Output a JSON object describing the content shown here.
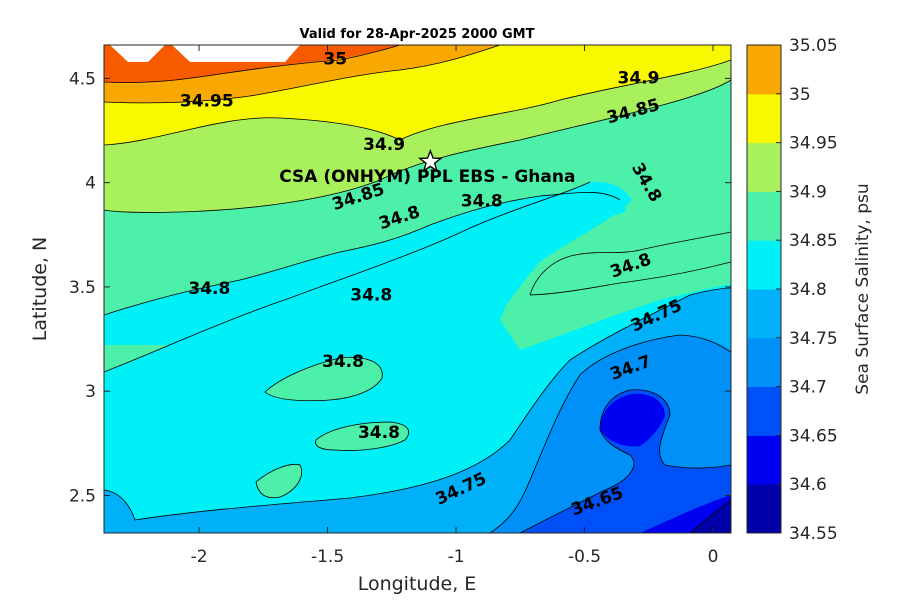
{
  "chart_data": {
    "type": "contour",
    "title": "Valid for 28-Apr-2025 2000 GMT",
    "xlabel": "Longitude, E",
    "ylabel": "Latitude, N",
    "xlim": [
      -2.37,
      0.07
    ],
    "ylim": [
      2.32,
      4.66
    ],
    "xticks": [
      -2,
      -1.5,
      -1,
      -0.5,
      0
    ],
    "xtick_labels": [
      "-2",
      "-1.5",
      "-1",
      "-0.5",
      "0"
    ],
    "yticks": [
      2.5,
      3,
      3.5,
      4,
      4.5
    ],
    "ytick_labels": [
      "2.5",
      "3",
      "3.5",
      "4",
      "4.5"
    ],
    "grid": false,
    "colorbar": {
      "label": "Sea Surface Salinity, psu",
      "levels": [
        34.55,
        34.6,
        34.65,
        34.7,
        34.75,
        34.8,
        34.85,
        34.9,
        34.95,
        35,
        35.05
      ],
      "tick_labels": [
        "34.55",
        "34.6",
        "34.65",
        "34.7",
        "34.75",
        "34.8",
        "34.85",
        "34.9",
        "34.95",
        "35",
        "35.05"
      ],
      "colors": [
        "#0000a8",
        "#0000f0",
        "#0050f8",
        "#0090f8",
        "#00b0f8",
        "#00f0f8",
        "#4cf0a8",
        "#a8f05c",
        "#f8f800",
        "#f8a800",
        "#f85a00"
      ]
    },
    "contour_labels": [
      {
        "text": "35",
        "x": -1.47,
        "y": 4.59,
        "angle": 0
      },
      {
        "text": "34.95",
        "x": -1.97,
        "y": 4.39,
        "angle": 0
      },
      {
        "text": "34.9",
        "x": -1.28,
        "y": 4.18,
        "angle": 0
      },
      {
        "text": "34.9",
        "x": -0.29,
        "y": 4.5,
        "angle": 0
      },
      {
        "text": "34.85",
        "x": -0.31,
        "y": 4.34,
        "angle": -15
      },
      {
        "text": "34.85",
        "x": -1.38,
        "y": 3.93,
        "angle": -18
      },
      {
        "text": "34.8",
        "x": -1.22,
        "y": 3.83,
        "angle": -18
      },
      {
        "text": "34.8",
        "x": -0.9,
        "y": 3.91,
        "angle": 0
      },
      {
        "text": "34.8",
        "x": -0.26,
        "y": 4.0,
        "angle": 60
      },
      {
        "text": "34.8",
        "x": -1.96,
        "y": 3.49,
        "angle": 0
      },
      {
        "text": "34.8",
        "x": -1.33,
        "y": 3.46,
        "angle": 0
      },
      {
        "text": "34.8",
        "x": -0.32,
        "y": 3.6,
        "angle": -20
      },
      {
        "text": "34.8",
        "x": -1.44,
        "y": 3.14,
        "angle": 0
      },
      {
        "text": "34.8",
        "x": -1.3,
        "y": 2.8,
        "angle": 0
      },
      {
        "text": "34.75",
        "x": -0.22,
        "y": 3.36,
        "angle": -25
      },
      {
        "text": "34.7",
        "x": -0.32,
        "y": 3.11,
        "angle": -20
      },
      {
        "text": "34.75",
        "x": -0.98,
        "y": 2.53,
        "angle": -25
      },
      {
        "text": "34.65",
        "x": -0.45,
        "y": 2.47,
        "angle": -20
      }
    ],
    "markers": [
      {
        "type": "star",
        "x": -1.1,
        "y": 4.1,
        "label": "CSA (ONHYM) PPL EBS  - Ghana"
      }
    ]
  }
}
